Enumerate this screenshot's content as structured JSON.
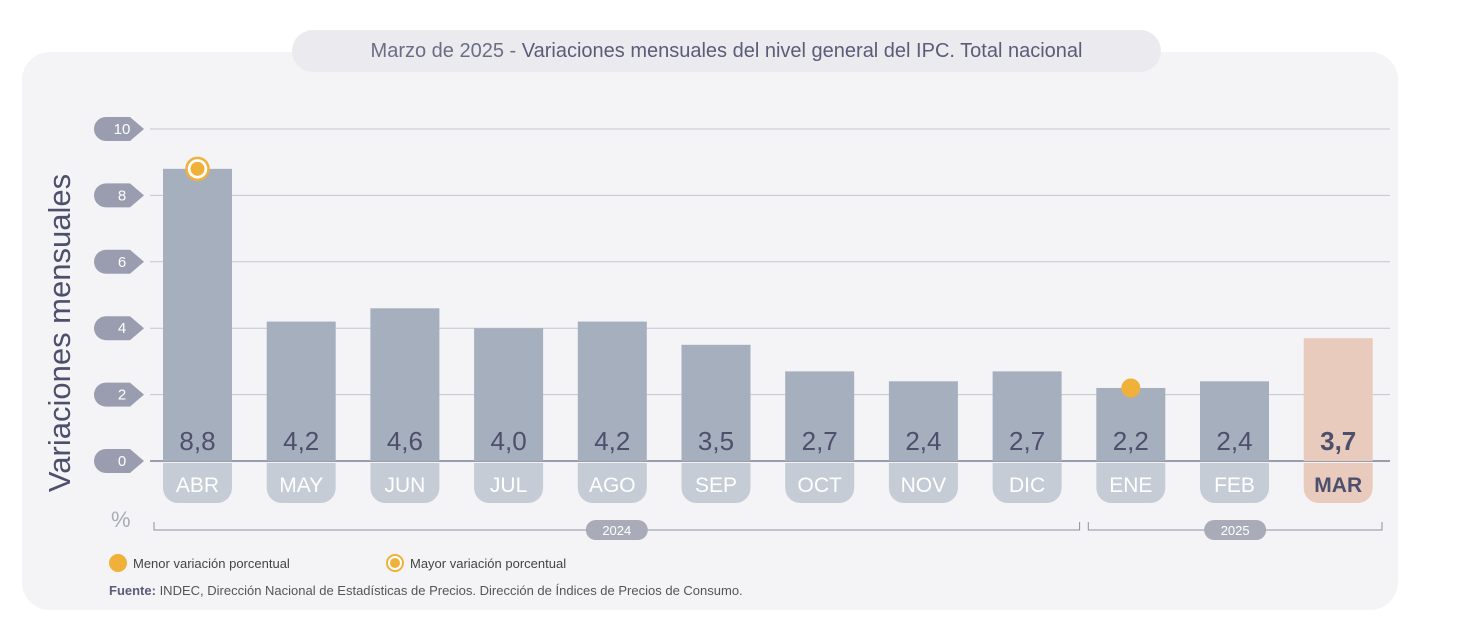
{
  "title": {
    "date": "Marzo de 2025",
    "separator": " - ",
    "text": "Variaciones mensuales del nivel general del IPC. Total nacional"
  },
  "chart_data": {
    "type": "bar",
    "ylabel": "Variaciones mensuales",
    "unit": "%",
    "ylim": [
      0,
      10
    ],
    "yticks": [
      "0",
      "2",
      "4",
      "6",
      "8",
      "10"
    ],
    "categories": [
      "ABR",
      "MAY",
      "JUN",
      "JUL",
      "AGO",
      "SEP",
      "OCT",
      "NOV",
      "DIC",
      "ENE",
      "FEB",
      "MAR"
    ],
    "values": [
      8.8,
      4.2,
      4.6,
      4.0,
      4.2,
      3.5,
      2.7,
      2.4,
      2.7,
      2.2,
      2.4,
      3.7
    ],
    "value_labels": [
      "8,8",
      "4,2",
      "4,6",
      "4,0",
      "4,2",
      "3,5",
      "2,7",
      "2,4",
      "2,7",
      "2,2",
      "2,4",
      "3,7"
    ],
    "year_groups": [
      {
        "label": "2024",
        "from": 0,
        "to": 8
      },
      {
        "label": "2025",
        "from": 9,
        "to": 11
      }
    ],
    "highlight_index": 11,
    "max_marker_index": 0,
    "min_marker_index": 9,
    "grid": true,
    "colors": {
      "bar": "#a6afbe",
      "highlight_bar": "#e8cbbd",
      "tab": "#c6ccd6",
      "marker": "#f0b13a",
      "axis_pill": "#9a9db0",
      "label": "#4d4f6d"
    }
  },
  "legend": {
    "min_label": "Menor variación porcentual",
    "max_label": "Mayor variación porcentual"
  },
  "source": {
    "bold": "Fuente:",
    "text": " INDEC, Dirección Nacional de Estadísticas de Precios. Dirección de Índices de Precios de Consumo."
  }
}
